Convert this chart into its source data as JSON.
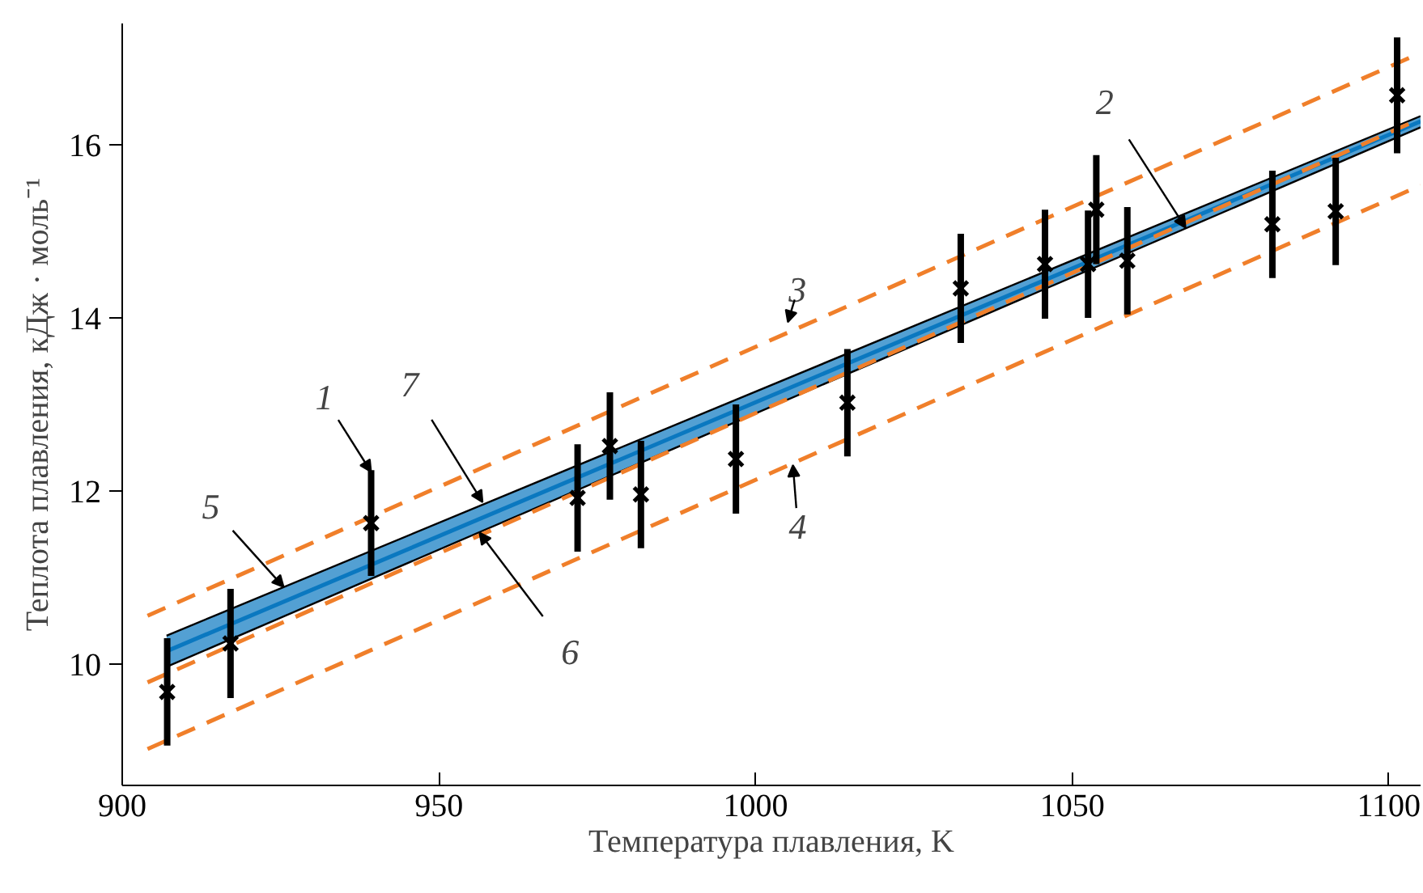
{
  "chart_data": {
    "type": "line",
    "xlabel": "Температура плавления, K",
    "ylabel": "Теплота плавления, кДж · моль⁻¹",
    "xlim": [
      900,
      1105
    ],
    "ylim": [
      8.6,
      17.4
    ],
    "xticks": [
      900,
      950,
      1000,
      1050,
      1100
    ],
    "yticks": [
      10,
      12,
      14,
      16
    ],
    "grid": false,
    "series": [
      {
        "color": "#0a78c0",
        "x": [
          907,
          1105
        ],
        "values": [
          10.15,
          16.27
        ],
        "lower": [
          9.97,
          16.2
        ],
        "upper": [
          10.33,
          16.33
        ]
      },
      {
        "color": "#000000",
        "x": [
          907,
          1105
        ],
        "values": [
          9.97,
          16.2
        ]
      },
      {
        "color": "#000000",
        "x": [
          907,
          1105
        ],
        "values": [
          10.33,
          16.33
        ]
      },
      {
        "color": "#f07f2a",
        "line_style": "dashed",
        "x": [
          904,
          1105
        ],
        "values": [
          9.79,
          16.3
        ]
      },
      {
        "color": "#f07f2a",
        "line_style": "dashed",
        "x": [
          904,
          1105
        ],
        "values": [
          10.56,
          17.06
        ]
      },
      {
        "color": "#f07f2a",
        "line_style": "dashed",
        "x": [
          904,
          1105
        ],
        "values": [
          9.02,
          15.53
        ]
      },
      {
        "type": "scatter",
        "marker": "cross",
        "color": "#000000",
        "x": [
          907.1,
          917.1,
          939.3,
          971.9,
          977.0,
          981.9,
          996.9,
          1014.5,
          1032.4,
          1045.7,
          1052.5,
          1053.8,
          1058.7,
          1081.6,
          1091.6,
          1101.3
        ],
        "values": [
          9.68,
          10.24,
          11.63,
          11.92,
          12.52,
          11.96,
          12.37,
          13.02,
          14.34,
          14.62,
          14.62,
          15.25,
          14.66,
          15.08,
          15.23,
          16.57
        ],
        "errors": [
          0.62,
          0.63,
          0.61,
          0.62,
          0.62,
          0.62,
          0.63,
          0.62,
          0.63,
          0.63,
          0.62,
          0.63,
          0.62,
          0.62,
          0.62,
          0.67
        ]
      }
    ],
    "annotations": [
      {
        "text": "1",
        "x": 939.3,
        "y": 12.22
      },
      {
        "text": "2",
        "x": 1067.9,
        "y": 15.04
      },
      {
        "text": "3",
        "x": 1005.1,
        "y": 13.95
      },
      {
        "text": "4",
        "x": 1005.9,
        "y": 12.3
      },
      {
        "text": "5",
        "x": 925.5,
        "y": 10.89
      },
      {
        "text": "6",
        "x": 956.4,
        "y": 11.52
      },
      {
        "text": "7",
        "x": 956.9,
        "y": 11.87
      }
    ]
  }
}
